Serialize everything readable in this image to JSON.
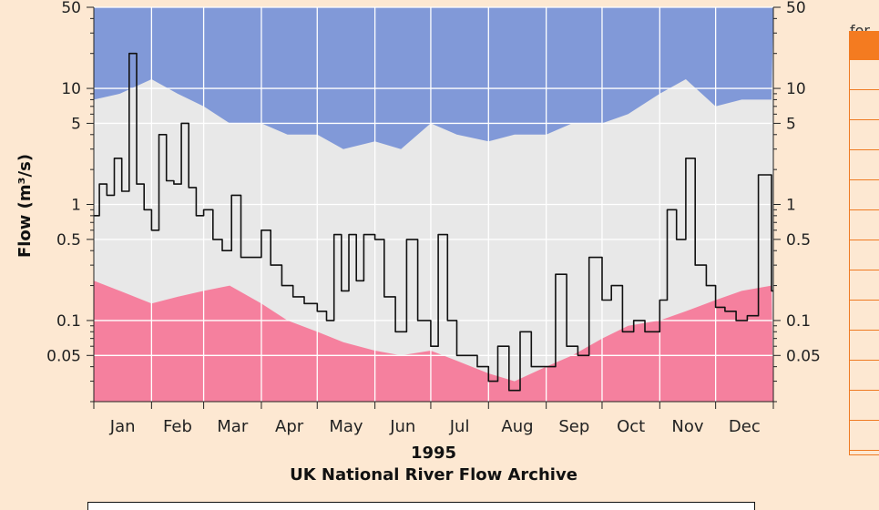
{
  "chart_data": {
    "type": "area",
    "title": "",
    "xlabel": "1995",
    "subtitle": "UK National River Flow Archive",
    "ylabel": "Flow (m³/s)",
    "y_scale": "log",
    "ylim": [
      0.02,
      50
    ],
    "grid": true,
    "y_ticks_labeled": [
      "50",
      "10",
      "5",
      "1",
      "0.5",
      "0.1",
      "0.05"
    ],
    "y_tick_values": [
      50,
      10,
      5,
      1,
      0.5,
      0.1,
      0.05
    ],
    "x_tick_labels": [
      "Jan",
      "Feb",
      "Mar",
      "Apr",
      "May",
      "Jun",
      "Jul",
      "Aug",
      "Sep",
      "Oct",
      "Nov",
      "Dec"
    ],
    "year": "1995",
    "colors": {
      "max_band": "#8199d8",
      "normal_band": "#e8e8e8",
      "min_band": "#f5809e",
      "flow_line": "#111111",
      "gridline": "#ffffff",
      "background": "#fde8d2"
    },
    "series": [
      {
        "kind": "band-max",
        "x": [
          "1995-01-01",
          "1995-01-15",
          "1995-02-01",
          "1995-02-15",
          "1995-03-01",
          "1995-03-15",
          "1995-04-01",
          "1995-04-15",
          "1995-05-01",
          "1995-05-15",
          "1995-06-01",
          "1995-06-15",
          "1995-07-01",
          "1995-07-15",
          "1995-08-01",
          "1995-08-15",
          "1995-09-01",
          "1995-09-15",
          "1995-10-01",
          "1995-10-15",
          "1995-11-01",
          "1995-11-15",
          "1995-12-01",
          "1995-12-15",
          "1995-12-31"
        ],
        "values": [
          8,
          9,
          12,
          9,
          7,
          5,
          5,
          4,
          4,
          3,
          3.5,
          3,
          5,
          4,
          3.5,
          4,
          4,
          5,
          5,
          6,
          9,
          12,
          7,
          8,
          8
        ]
      },
      {
        "kind": "band-min",
        "x": [
          "1995-01-01",
          "1995-01-15",
          "1995-02-01",
          "1995-02-15",
          "1995-03-01",
          "1995-03-15",
          "1995-04-01",
          "1995-04-15",
          "1995-05-01",
          "1995-05-15",
          "1995-06-01",
          "1995-06-15",
          "1995-07-01",
          "1995-07-15",
          "1995-08-01",
          "1995-08-15",
          "1995-09-01",
          "1995-09-15",
          "1995-10-01",
          "1995-10-15",
          "1995-11-01",
          "1995-11-15",
          "1995-12-01",
          "1995-12-15",
          "1995-12-31"
        ],
        "values": [
          0.22,
          0.18,
          0.14,
          0.16,
          0.18,
          0.2,
          0.14,
          0.1,
          0.08,
          0.065,
          0.055,
          0.05,
          0.055,
          0.045,
          0.035,
          0.03,
          0.04,
          0.05,
          0.07,
          0.09,
          0.1,
          0.12,
          0.15,
          0.18,
          0.2
        ]
      },
      {
        "kind": "flow-1995",
        "x": [
          "1995-01-01",
          "1995-01-04",
          "1995-01-08",
          "1995-01-12",
          "1995-01-16",
          "1995-01-20",
          "1995-01-24",
          "1995-01-28",
          "1995-02-01",
          "1995-02-05",
          "1995-02-09",
          "1995-02-13",
          "1995-02-17",
          "1995-02-21",
          "1995-02-25",
          "1995-03-01",
          "1995-03-06",
          "1995-03-11",
          "1995-03-16",
          "1995-03-21",
          "1995-03-26",
          "1995-04-01",
          "1995-04-06",
          "1995-04-12",
          "1995-04-18",
          "1995-04-24",
          "1995-05-01",
          "1995-05-06",
          "1995-05-10",
          "1995-05-14",
          "1995-05-18",
          "1995-05-22",
          "1995-05-26",
          "1995-06-01",
          "1995-06-06",
          "1995-06-12",
          "1995-06-18",
          "1995-06-24",
          "1995-07-01",
          "1995-07-05",
          "1995-07-10",
          "1995-07-15",
          "1995-07-20",
          "1995-07-26",
          "1995-08-01",
          "1995-08-06",
          "1995-08-12",
          "1995-08-18",
          "1995-08-24",
          "1995-09-01",
          "1995-09-06",
          "1995-09-12",
          "1995-09-18",
          "1995-09-24",
          "1995-10-01",
          "1995-10-06",
          "1995-10-12",
          "1995-10-18",
          "1995-10-24",
          "1995-11-01",
          "1995-11-05",
          "1995-11-10",
          "1995-11-15",
          "1995-11-20",
          "1995-11-26",
          "1995-12-01",
          "1995-12-06",
          "1995-12-12",
          "1995-12-18",
          "1995-12-24",
          "1995-12-31"
        ],
        "values": [
          0.8,
          1.5,
          1.2,
          2.5,
          1.3,
          20,
          1.5,
          0.9,
          0.6,
          4,
          1.6,
          1.5,
          5,
          1.4,
          0.8,
          0.9,
          0.5,
          0.4,
          1.2,
          0.35,
          0.35,
          0.6,
          0.3,
          0.2,
          0.16,
          0.14,
          0.12,
          0.1,
          0.55,
          0.18,
          0.55,
          0.22,
          0.55,
          0.5,
          0.16,
          0.08,
          0.5,
          0.1,
          0.06,
          0.55,
          0.1,
          0.05,
          0.05,
          0.04,
          0.03,
          0.06,
          0.025,
          0.08,
          0.04,
          0.04,
          0.25,
          0.06,
          0.05,
          0.35,
          0.15,
          0.2,
          0.08,
          0.1,
          0.08,
          0.15,
          0.9,
          0.5,
          2.5,
          0.3,
          0.2,
          0.13,
          0.12,
          0.1,
          0.11,
          1.8,
          0.18
        ]
      }
    ]
  }
}
